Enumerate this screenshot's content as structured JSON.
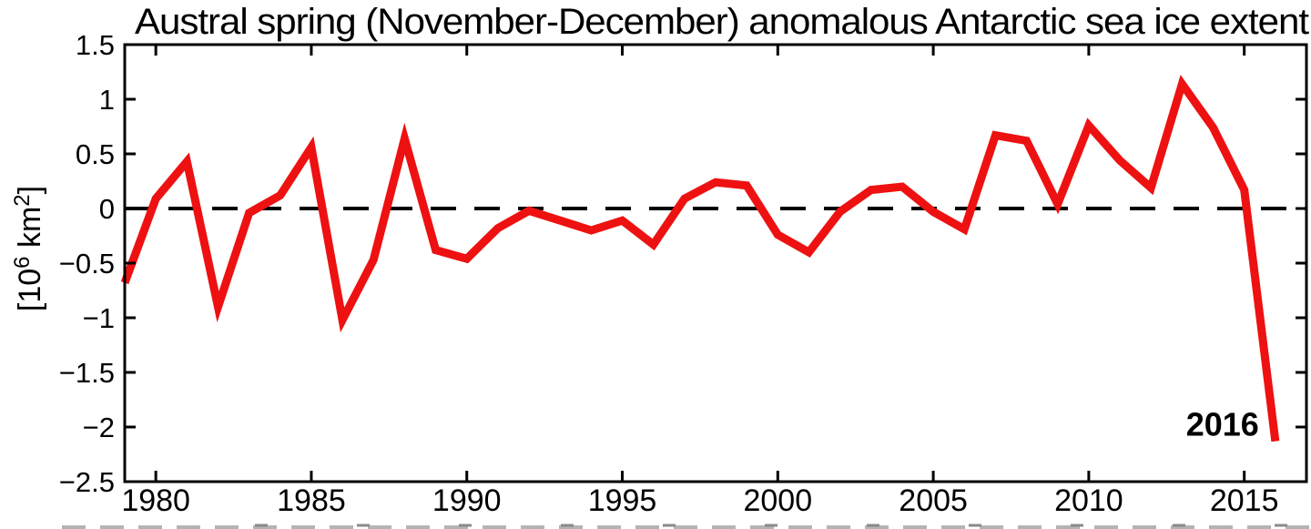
{
  "page": {
    "background": "#ffffff"
  },
  "chart_data": {
    "type": "line",
    "title": "Austral spring (November-December) anomalous Antarctic sea ice extent",
    "ylabel": "[10⁶ km²]",
    "xlabel": "",
    "x": [
      1979,
      1980,
      1981,
      1982,
      1983,
      1984,
      1985,
      1986,
      1987,
      1988,
      1989,
      1990,
      1991,
      1992,
      1993,
      1994,
      1995,
      1996,
      1997,
      1998,
      1999,
      2000,
      2001,
      2002,
      2003,
      2004,
      2005,
      2006,
      2007,
      2008,
      2009,
      2010,
      2011,
      2012,
      2013,
      2014,
      2015,
      2016
    ],
    "y": [
      -0.68,
      0.09,
      0.43,
      -0.9,
      -0.04,
      0.12,
      0.56,
      -1.02,
      -0.47,
      0.64,
      -0.38,
      -0.46,
      -0.18,
      -0.02,
      -0.11,
      -0.2,
      -0.11,
      -0.33,
      0.09,
      0.24,
      0.21,
      -0.24,
      -0.4,
      -0.03,
      0.17,
      0.2,
      -0.03,
      -0.19,
      0.67,
      0.62,
      0.04,
      0.76,
      0.44,
      0.19,
      1.14,
      0.74,
      0.17,
      -2.13
    ],
    "xlim": [
      1979,
      2017
    ],
    "ylim": [
      -2.5,
      1.5
    ],
    "x_ticks": {
      "values": [
        1980,
        1985,
        1990,
        1995,
        2000,
        2005,
        2010,
        2015
      ],
      "labels": [
        "1980",
        "1985",
        "1990",
        "1995",
        "2000",
        "2005",
        "2010",
        "2015"
      ]
    },
    "y_ticks": {
      "values": [
        1.5,
        1,
        0.5,
        0,
        -0.5,
        -1,
        -1.5,
        -2,
        -2.5
      ],
      "labels": [
        "1.5",
        "1",
        "0.5",
        "0",
        "−0.5",
        "−1",
        "−1.5",
        "−2",
        "−2.5"
      ]
    },
    "zero_line": {
      "value": 0,
      "style": "dashed",
      "color": "#000000"
    },
    "line": {
      "color": "#ee1111",
      "width": 9
    },
    "annotation": {
      "label": "2016",
      "x": 2014.3,
      "y": -1.98,
      "color": "#ee1111",
      "bold": true
    },
    "grid": false,
    "legend": "none"
  },
  "decor": {
    "cropped_strip_color_light": "#b4b4b4",
    "cropped_strip_color_dark": "#8a8a8a"
  }
}
